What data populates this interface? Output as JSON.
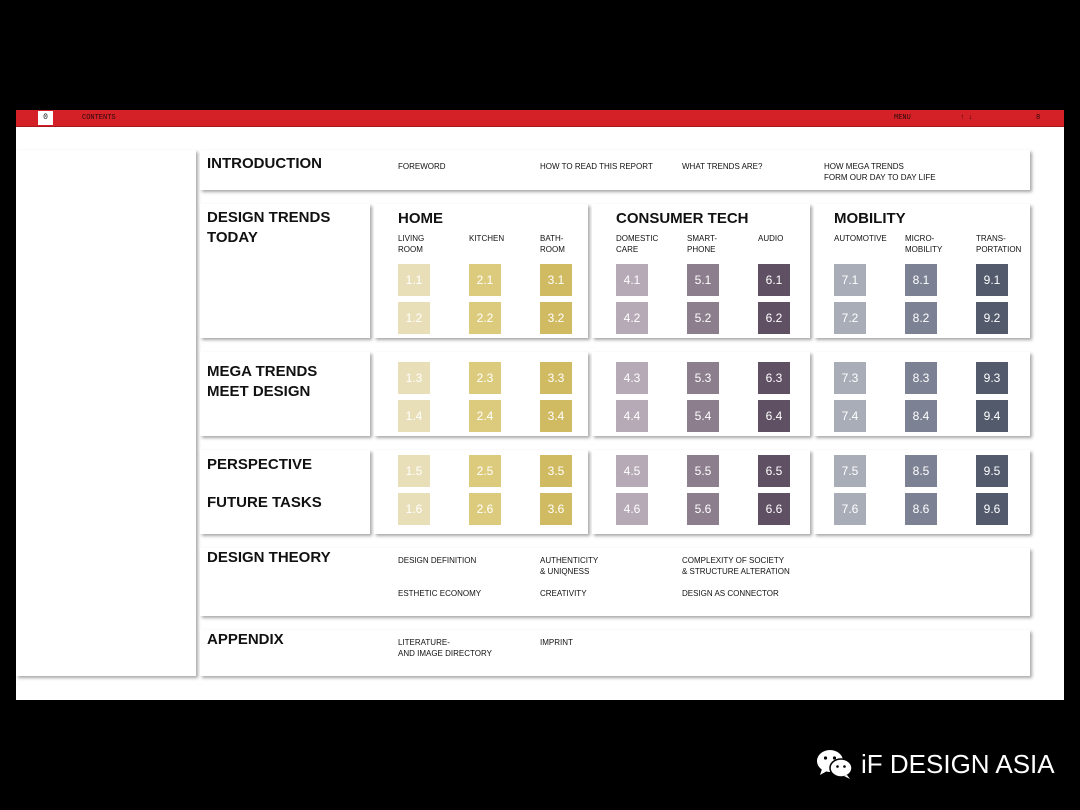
{
  "topbar": {
    "page_indicator": "0",
    "contents_label": "CONTENTS",
    "menu_label": "MENU",
    "arrows_label": "↑ ↓",
    "page_number": "8"
  },
  "sections": {
    "introduction": {
      "title": "INTRODUCTION",
      "links": [
        "FOREWORD",
        "HOW TO READ THIS REPORT",
        "WHAT TRENDS ARE?",
        "HOW MEGA TRENDS\nFORM OUR DAY TO DAY LIFE"
      ]
    },
    "design_trends_today": {
      "title": "DESIGN TRENDS\nTODAY"
    },
    "mega_trends": {
      "title": "MEGA TRENDS\nMEET DESIGN"
    },
    "perspective": {
      "title": "PERSPECTIVE"
    },
    "future_tasks": {
      "title": "FUTURE TASKS"
    },
    "design_theory": {
      "title": "DESIGN THEORY",
      "links": [
        "DESIGN DEFINITION",
        "AUTHENTICITY\n& UNIQNESS",
        "COMPLEXITY OF SOCIETY\n& STRUCTURE ALTERATION",
        "ESTHETIC ECONOMY",
        "CREATIVITY",
        "DESIGN AS CONNECTOR"
      ]
    },
    "appendix": {
      "title": "APPENDIX",
      "links": [
        "LITERATURE-\nAND IMAGE DIRECTORY",
        "IMPRINT"
      ]
    }
  },
  "columns": [
    {
      "title": "HOME",
      "subs": [
        {
          "label": "LIVING\nROOM",
          "color": "#e8dfb8",
          "codes": [
            "1.1",
            "1.2",
            "1.3",
            "1.4",
            "1.5",
            "1.6"
          ]
        },
        {
          "label": "KITCHEN",
          "color": "#dccb7c",
          "codes": [
            "2.1",
            "2.2",
            "2.3",
            "2.4",
            "2.5",
            "2.6"
          ]
        },
        {
          "label": "BATH-\nROOM",
          "color": "#d1bb62",
          "codes": [
            "3.1",
            "3.2",
            "3.3",
            "3.4",
            "3.5",
            "3.6"
          ]
        }
      ]
    },
    {
      "title": "CONSUMER TECH",
      "subs": [
        {
          "label": "DOMESTIC\nCARE",
          "color": "#b6aab6",
          "codes": [
            "4.1",
            "4.2",
            "4.3",
            "4.4",
            "4.5",
            "4.6"
          ]
        },
        {
          "label": "SMART-\nPHONE",
          "color": "#8c7e8d",
          "codes": [
            "5.1",
            "5.2",
            "5.3",
            "5.4",
            "5.5",
            "5.6"
          ]
        },
        {
          "label": "AUDIO",
          "color": "#605064",
          "codes": [
            "6.1",
            "6.2",
            "6.3",
            "6.4",
            "6.5",
            "6.6"
          ]
        }
      ]
    },
    {
      "title": "MOBILITY",
      "subs": [
        {
          "label": "AUTOMOTIVE",
          "color": "#a8adb8",
          "codes": [
            "7.1",
            "7.2",
            "7.3",
            "7.4",
            "7.5",
            "7.6"
          ]
        },
        {
          "label": "MICRO-\nMOBILITY",
          "color": "#7c8294",
          "codes": [
            "8.1",
            "8.2",
            "8.3",
            "8.4",
            "8.5",
            "8.6"
          ]
        },
        {
          "label": "TRANS-\nPORTATION",
          "color": "#525a6c",
          "codes": [
            "9.1",
            "9.2",
            "9.3",
            "9.4",
            "9.5",
            "9.6"
          ]
        }
      ]
    }
  ],
  "brand": {
    "text": "iF DESIGN ASIA",
    "icon": "wechat-icon"
  }
}
